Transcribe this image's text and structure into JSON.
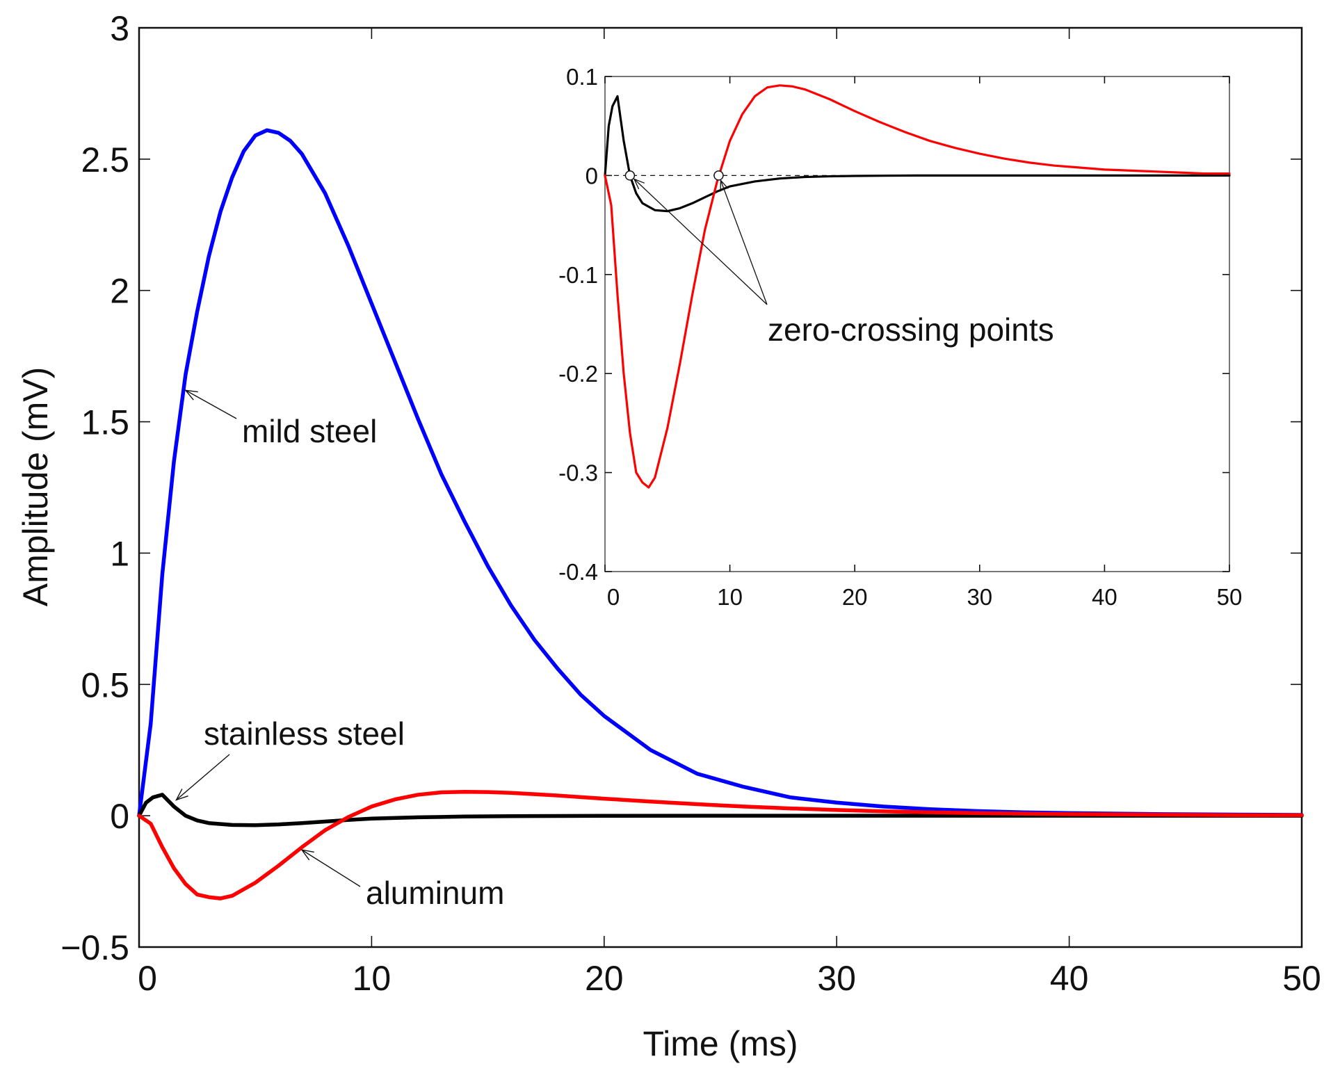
{
  "chart_data": [
    {
      "type": "line",
      "role": "main",
      "title": "",
      "xlabel": "Time (ms)",
      "ylabel": "Amplitude (mV)",
      "xlim": [
        0,
        50
      ],
      "ylim": [
        -0.5,
        3
      ],
      "grid": false,
      "x_ticks": [
        0,
        10,
        20,
        30,
        40,
        50
      ],
      "x_tick_labels": [
        "0",
        "10",
        "20",
        "30",
        "40",
        "50"
      ],
      "y_ticks": [
        -0.5,
        0,
        0.5,
        1,
        1.5,
        2,
        2.5,
        3
      ],
      "y_tick_labels": [
        "−0.5",
        "0",
        "0.5",
        "1",
        "1.5",
        "2",
        "2.5",
        "3"
      ],
      "series": [
        {
          "name": "mild steel",
          "color": "#0000ff",
          "x": [
            0,
            0.5,
            1,
            1.5,
            2,
            2.5,
            3,
            3.5,
            4,
            4.5,
            5,
            5.5,
            6,
            6.5,
            7,
            8,
            9,
            10,
            11,
            12,
            13,
            14,
            15,
            16,
            17,
            18,
            19,
            20,
            22,
            24,
            26,
            28,
            30,
            32,
            34,
            36,
            38,
            40,
            42,
            44,
            46,
            48,
            50
          ],
          "y": [
            0,
            0.35,
            0.92,
            1.35,
            1.68,
            1.92,
            2.13,
            2.3,
            2.43,
            2.53,
            2.59,
            2.61,
            2.6,
            2.57,
            2.52,
            2.37,
            2.17,
            1.95,
            1.73,
            1.51,
            1.3,
            1.12,
            0.95,
            0.8,
            0.67,
            0.56,
            0.46,
            0.38,
            0.25,
            0.16,
            0.11,
            0.07,
            0.05,
            0.035,
            0.025,
            0.018,
            0.013,
            0.01,
            0.008,
            0.006,
            0.005,
            0.004,
            0.003
          ]
        },
        {
          "name": "stainless steel",
          "color": "#000000",
          "x": [
            0,
            0.3,
            0.6,
            1,
            1.5,
            2,
            2.5,
            3,
            4,
            5,
            6,
            7,
            8,
            9,
            10,
            12,
            14,
            16,
            18,
            20,
            25,
            30,
            35,
            40,
            45,
            50
          ],
          "y": [
            0,
            0.05,
            0.07,
            0.08,
            0.035,
            0.0,
            -0.018,
            -0.028,
            -0.035,
            -0.036,
            -0.033,
            -0.028,
            -0.022,
            -0.016,
            -0.011,
            -0.006,
            -0.003,
            -0.0015,
            -0.0008,
            -0.0004,
            0,
            0,
            0,
            0,
            0,
            0
          ]
        },
        {
          "name": "aluminum",
          "color": "#ff0000",
          "x": [
            0,
            0.5,
            1,
            1.5,
            2,
            2.5,
            3,
            3.5,
            4,
            4.5,
            5,
            6,
            7,
            8,
            9,
            10,
            11,
            12,
            13,
            14,
            15,
            16,
            17,
            18,
            19,
            20,
            22,
            24,
            26,
            28,
            30,
            32,
            34,
            36,
            38,
            40,
            42,
            44,
            46,
            48,
            50
          ],
          "y": [
            0,
            -0.03,
            -0.12,
            -0.2,
            -0.26,
            -0.3,
            -0.31,
            -0.315,
            -0.305,
            -0.28,
            -0.255,
            -0.19,
            -0.12,
            -0.055,
            -0.005,
            0.035,
            0.062,
            0.08,
            0.089,
            0.091,
            0.09,
            0.087,
            0.082,
            0.077,
            0.071,
            0.065,
            0.054,
            0.044,
            0.035,
            0.028,
            0.022,
            0.017,
            0.013,
            0.01,
            0.008,
            0.006,
            0.005,
            0.004,
            0.003,
            0.002,
            0.002
          ]
        }
      ],
      "annotations": [
        {
          "text": "mild steel",
          "target_x": 2,
          "target_y": 1.62
        },
        {
          "text": "stainless steel",
          "target_x": 1.6,
          "target_y": 0.06
        },
        {
          "text": "aluminum",
          "target_x": 7,
          "target_y": -0.13
        }
      ]
    },
    {
      "type": "line",
      "role": "inset",
      "title": "",
      "xlabel": "",
      "ylabel": "",
      "xlim": [
        0,
        50
      ],
      "ylim": [
        -0.4,
        0.1
      ],
      "grid": false,
      "x_ticks": [
        0,
        10,
        20,
        30,
        40,
        50
      ],
      "x_tick_labels": [
        "0",
        "10",
        "20",
        "30",
        "40",
        "50"
      ],
      "y_ticks": [
        -0.4,
        -0.3,
        -0.2,
        -0.1,
        0,
        0.1
      ],
      "y_tick_labels": [
        "-0.4",
        "-0.3",
        "-0.2",
        "-0.1",
        "0",
        "0.1"
      ],
      "zero_line": {
        "y": 0,
        "style": "dashed"
      },
      "series": [
        {
          "name": "stainless steel",
          "color": "#000000",
          "x": [
            0,
            0.3,
            0.6,
            1,
            1.5,
            2,
            2.5,
            3,
            4,
            5,
            6,
            7,
            8,
            9,
            10,
            12,
            14,
            16,
            18,
            20,
            25,
            30,
            35,
            40,
            45,
            50
          ],
          "y": [
            0,
            0.05,
            0.07,
            0.08,
            0.035,
            0.0,
            -0.018,
            -0.028,
            -0.035,
            -0.036,
            -0.033,
            -0.028,
            -0.022,
            -0.016,
            -0.011,
            -0.006,
            -0.003,
            -0.0015,
            -0.0008,
            -0.0004,
            0,
            0,
            0,
            0,
            0,
            0
          ]
        },
        {
          "name": "aluminum",
          "color": "#ff0000",
          "x": [
            0,
            0.5,
            1,
            1.5,
            2,
            2.5,
            3,
            3.5,
            4,
            4.5,
            5,
            6,
            7,
            8,
            9,
            10,
            11,
            12,
            13,
            14,
            15,
            16,
            17,
            18,
            19,
            20,
            22,
            24,
            26,
            28,
            30,
            32,
            34,
            36,
            38,
            40,
            42,
            44,
            46,
            48,
            50
          ],
          "y": [
            0,
            -0.03,
            -0.12,
            -0.2,
            -0.26,
            -0.3,
            -0.31,
            -0.315,
            -0.305,
            -0.28,
            -0.255,
            -0.19,
            -0.12,
            -0.055,
            -0.005,
            0.035,
            0.062,
            0.08,
            0.089,
            0.091,
            0.09,
            0.087,
            0.082,
            0.077,
            0.071,
            0.065,
            0.054,
            0.044,
            0.035,
            0.028,
            0.022,
            0.017,
            0.013,
            0.01,
            0.008,
            0.006,
            0.005,
            0.004,
            0.003,
            0.002,
            0.002
          ]
        }
      ],
      "zero_crossings": [
        {
          "series": "stainless steel",
          "x": 2,
          "y": 0
        },
        {
          "series": "aluminum",
          "x": 9.1,
          "y": 0
        }
      ],
      "annotations": [
        {
          "text": "zero-crossing points"
        }
      ]
    }
  ]
}
